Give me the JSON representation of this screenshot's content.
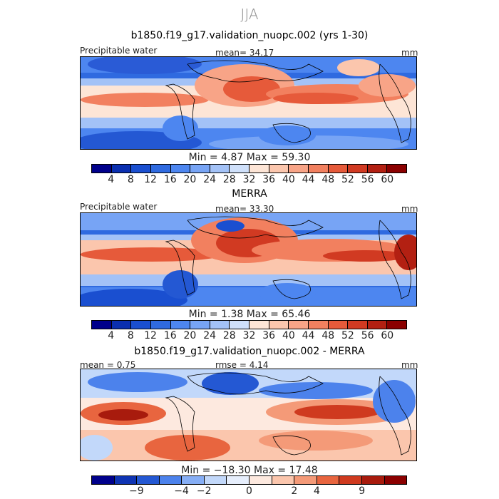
{
  "season": "JJA",
  "panels": [
    {
      "title": "b1850.f19_g17.validation_nuopc.002 (yrs 1-30)",
      "variable": "Precipitable water",
      "mean_text": "mean= 34.17",
      "units": "mm",
      "stats_text": "Min = 4.87 Max = 59.30"
    },
    {
      "title": "MERRA",
      "variable": "Precipitable water",
      "mean_text": "mean= 33.30",
      "units": "mm",
      "stats_text": "Min = 1.38 Max = 65.46"
    },
    {
      "title": "b1850.f19_g17.validation_nuopc.002 - MERRA",
      "mean_text": "mean = 0.75",
      "rmse_text": "rmse = 4.14",
      "units": "mm",
      "stats_text": "Min = −18.30 Max = 17.48"
    }
  ],
  "colors": {
    "absolute": [
      "#00008b",
      "#0a2fb0",
      "#1a4fd0",
      "#2f6ae0",
      "#4d86f0",
      "#77a4f5",
      "#a3c2f7",
      "#cfe0fa",
      "#fde5d6",
      "#fbc6ad",
      "#f8a487",
      "#f2805f",
      "#e65a3a",
      "#d13a22",
      "#b32012",
      "#8b0000"
    ],
    "difference": [
      "#00008b",
      "#0f34b3",
      "#2458d3",
      "#4c82ec",
      "#86aef5",
      "#c2d8fa",
      "#e6eefc",
      "#fde9df",
      "#fbc6ad",
      "#f49a78",
      "#e8653f",
      "#cf3a1f",
      "#a81b0d",
      "#8b0000"
    ]
  },
  "chart_data": [
    {
      "type": "heatmap",
      "title": "b1850.f19_g17.validation_nuopc.002 (yrs 1-30)",
      "variable": "Precipitable water",
      "units": "mm",
      "mean": 34.17,
      "min": 4.87,
      "max": 59.3,
      "colorbar_ticks": [
        "4",
        "8",
        "12",
        "16",
        "20",
        "24",
        "28",
        "32",
        "36",
        "40",
        "44",
        "48",
        "52",
        "56",
        "60"
      ]
    },
    {
      "type": "heatmap",
      "title": "MERRA",
      "variable": "Precipitable water",
      "units": "mm",
      "mean": 33.3,
      "min": 1.38,
      "max": 65.46,
      "colorbar_ticks": [
        "4",
        "8",
        "12",
        "16",
        "20",
        "24",
        "28",
        "32",
        "36",
        "40",
        "44",
        "48",
        "52",
        "56",
        "60"
      ]
    },
    {
      "type": "heatmap",
      "title": "b1850.f19_g17.validation_nuopc.002 - MERRA",
      "units": "mm",
      "mean": 0.75,
      "rmse": 4.14,
      "min": -18.3,
      "max": 17.48,
      "colorbar_ticks": [
        "−9",
        "−4",
        "−2",
        "0",
        "2",
        "4",
        "9"
      ]
    }
  ]
}
